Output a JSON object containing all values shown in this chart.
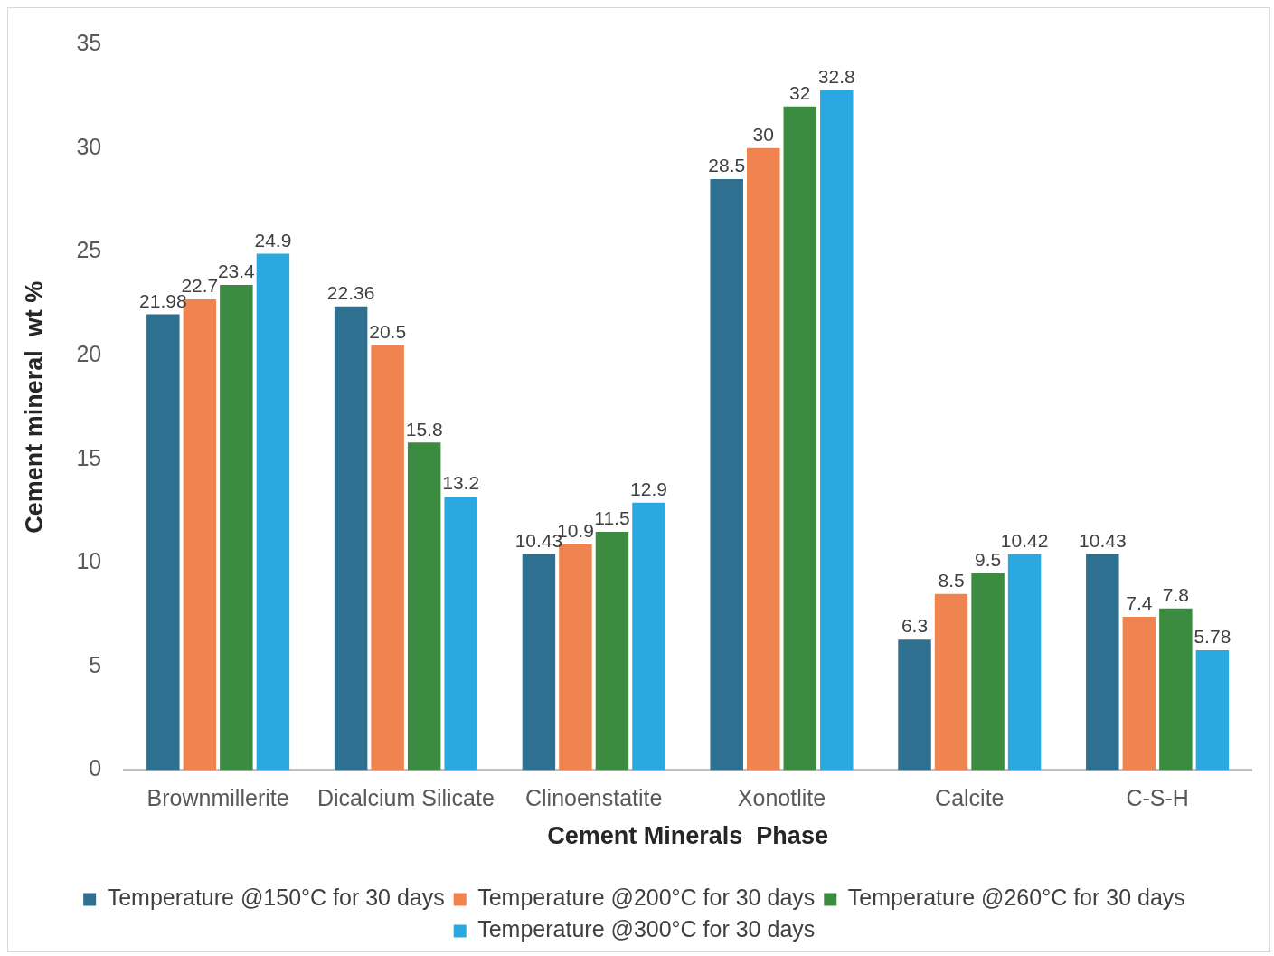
{
  "chart_data": {
    "type": "bar",
    "xlabel": "Cement Minerals  Phase",
    "ylabel": "Cement mineral  wt %",
    "categories": [
      "Brownmillerite",
      "Dicalcium Silicate",
      "Clinoenstatite",
      "Xonotlite",
      "Calcite",
      "C-S-H"
    ],
    "series": [
      {
        "name": "Temperature @150°C for 30 days",
        "color": "#2f6f8f",
        "values": [
          21.98,
          22.36,
          10.43,
          28.5,
          6.3,
          10.43
        ]
      },
      {
        "name": "Temperature @200°C for 30 days",
        "color": "#ef8450",
        "values": [
          22.7,
          20.5,
          10.9,
          30,
          8.5,
          7.4
        ]
      },
      {
        "name": "Temperature @260°C for 30 days",
        "color": "#3b8b40",
        "values": [
          23.4,
          15.8,
          11.5,
          32,
          9.5,
          7.8
        ]
      },
      {
        "name": "Temperature @300°C for 30 days",
        "color": "#2aa9e0",
        "values": [
          24.9,
          13.2,
          12.9,
          32.8,
          10.42,
          5.78
        ]
      }
    ],
    "ylim": [
      0,
      35
    ],
    "yticks": [
      0,
      5,
      10,
      15,
      20,
      25,
      30,
      35
    ],
    "grid": false,
    "legend": "bottom",
    "data_labels": true
  }
}
